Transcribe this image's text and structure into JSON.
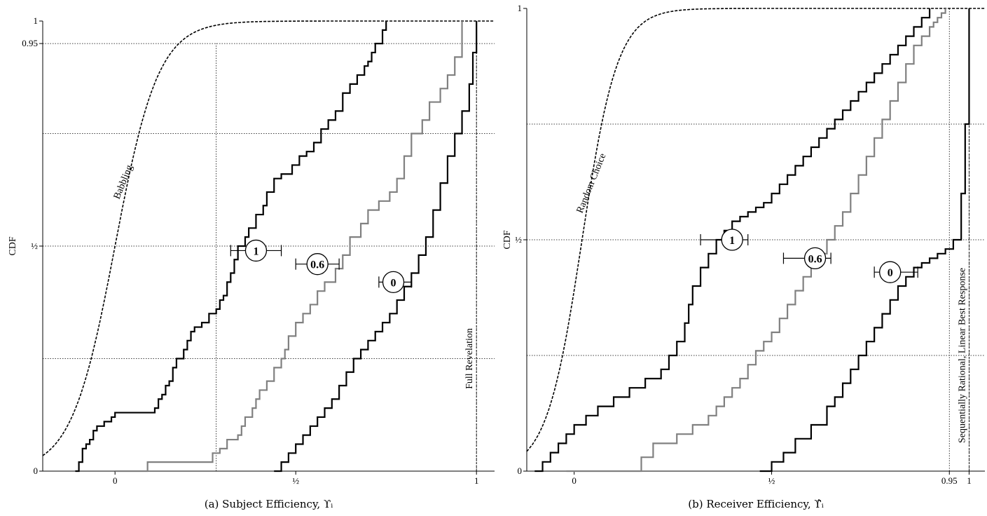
{
  "chart_data": [
    {
      "type": "line",
      "caption": "(a) Subject Efficiency, ϒᵢ",
      "ylabel": "CDF",
      "xlim": [
        -0.2,
        1.05
      ],
      "ylim": [
        0,
        1
      ],
      "x_ticks": [
        {
          "v": 0,
          "t": "0"
        },
        {
          "v": 0.5,
          "t": "½"
        },
        {
          "v": 1,
          "t": "1"
        }
      ],
      "y_ticks": [
        {
          "v": 0,
          "t": "0"
        },
        {
          "v": 0.5,
          "t": "½"
        },
        {
          "v": 0.95,
          "t": "0.95"
        },
        {
          "v": 1,
          "t": "1"
        }
      ],
      "h_grid": [
        0.25,
        0.5,
        0.75,
        0.95
      ],
      "v_ref": [
        {
          "x": 0.28,
          "y_to": 0.95
        },
        {
          "x": 1.0,
          "y_to": 1
        }
      ],
      "reference_curves": [
        {
          "label": "Babbling",
          "center": 0.0,
          "scale": 0.06,
          "x_from": -0.2,
          "x_to": 1.0,
          "label_x": 0.03,
          "label_y": 0.64
        },
        {
          "label": "Full Revelation",
          "vertical_x": 1.0,
          "label_y": 0.25
        }
      ],
      "series": [
        {
          "name": "1",
          "color": "#000000",
          "x": [
            -0.11,
            -0.1,
            -0.09,
            -0.08,
            -0.07,
            -0.06,
            -0.05,
            -0.03,
            -0.01,
            0,
            0.03,
            0.05,
            0.09,
            0.11,
            0.12,
            0.13,
            0.14,
            0.15,
            0.16,
            0.17,
            0.19,
            0.2,
            0.21,
            0.22,
            0.24,
            0.26,
            0.28,
            0.29,
            0.3,
            0.31,
            0.32,
            0.33,
            0.34,
            0.34,
            0.35,
            0.36,
            0.37,
            0.39,
            0.41,
            0.42,
            0.44,
            0.46,
            0.49,
            0.51,
            0.53,
            0.55,
            0.57,
            0.59,
            0.61,
            0.63,
            0.65,
            0.67,
            0.69,
            0.7,
            0.71,
            0.72,
            0.74,
            0.75
          ],
          "y": [
            0,
            0.02,
            0.05,
            0.06,
            0.07,
            0.09,
            0.1,
            0.11,
            0.12,
            0.13,
            0.13,
            0.13,
            0.13,
            0.14,
            0.16,
            0.17,
            0.19,
            0.2,
            0.23,
            0.25,
            0.27,
            0.29,
            0.31,
            0.32,
            0.33,
            0.35,
            0.36,
            0.38,
            0.39,
            0.42,
            0.44,
            0.47,
            0.49,
            0.5,
            0.5,
            0.52,
            0.54,
            0.57,
            0.59,
            0.62,
            0.65,
            0.66,
            0.68,
            0.7,
            0.71,
            0.73,
            0.76,
            0.78,
            0.8,
            0.84,
            0.86,
            0.88,
            0.9,
            0.91,
            0.93,
            0.95,
            0.98,
            1.0
          ]
        },
        {
          "name": "0.6",
          "color": "#808080",
          "x": [
            0,
            0.09,
            0.27,
            0.29,
            0.31,
            0.34,
            0.35,
            0.36,
            0.38,
            0.39,
            0.4,
            0.42,
            0.44,
            0.46,
            0.47,
            0.48,
            0.5,
            0.52,
            0.54,
            0.56,
            0.58,
            0.61,
            0.63,
            0.65,
            0.68,
            0.7,
            0.73,
            0.76,
            0.78,
            0.8,
            0.82,
            0.85,
            0.87,
            0.9,
            0.92,
            0.94,
            0.96
          ],
          "y": [
            0,
            0.02,
            0.04,
            0.05,
            0.07,
            0.08,
            0.1,
            0.12,
            0.14,
            0.16,
            0.18,
            0.2,
            0.23,
            0.25,
            0.27,
            0.3,
            0.33,
            0.35,
            0.37,
            0.4,
            0.42,
            0.45,
            0.48,
            0.52,
            0.55,
            0.58,
            0.6,
            0.62,
            0.65,
            0.7,
            0.75,
            0.78,
            0.82,
            0.85,
            0.88,
            0.92,
            1.0
          ]
        },
        {
          "name": "0",
          "color": "#000000",
          "x": [
            0.44,
            0.46,
            0.48,
            0.5,
            0.52,
            0.54,
            0.56,
            0.58,
            0.6,
            0.62,
            0.64,
            0.66,
            0.68,
            0.7,
            0.72,
            0.74,
            0.76,
            0.78,
            0.8,
            0.82,
            0.84,
            0.86,
            0.88,
            0.9,
            0.92,
            0.94,
            0.96,
            0.98,
            0.99,
            1.0
          ],
          "y": [
            0,
            0.02,
            0.04,
            0.06,
            0.08,
            0.1,
            0.12,
            0.14,
            0.16,
            0.19,
            0.22,
            0.25,
            0.27,
            0.29,
            0.31,
            0.33,
            0.35,
            0.38,
            0.41,
            0.44,
            0.48,
            0.52,
            0.58,
            0.64,
            0.7,
            0.75,
            0.8,
            0.86,
            0.93,
            1.0
          ]
        }
      ],
      "error_bars": [
        {
          "label": "1",
          "x": 0.39,
          "lo": 0.32,
          "hi": 0.46,
          "y": 0.49
        },
        {
          "label": "0.6",
          "x": 0.56,
          "lo": 0.5,
          "hi": 0.62,
          "y": 0.46
        },
        {
          "label": "0",
          "x": 0.77,
          "lo": 0.73,
          "hi": 0.82,
          "y": 0.42
        }
      ]
    },
    {
      "type": "line",
      "caption": "(b) Receiver Efficiency, ϒ̂ᵢ",
      "ylabel": "CDF",
      "xlim": [
        -0.12,
        1.04
      ],
      "ylim": [
        0,
        1
      ],
      "x_ticks": [
        {
          "v": 0,
          "t": "0"
        },
        {
          "v": 0.5,
          "t": "½"
        },
        {
          "v": 0.95,
          "t": "0.95"
        },
        {
          "v": 1,
          "t": "1"
        }
      ],
      "y_ticks": [
        {
          "v": 0,
          "t": "0"
        },
        {
          "v": 0.5,
          "t": "½"
        },
        {
          "v": 1,
          "t": "1"
        }
      ],
      "h_grid": [
        0.25,
        0.5,
        0.75
      ],
      "v_ref": [
        {
          "x": 0.95,
          "y_to": 1
        },
        {
          "x": 1.0,
          "y_to": 1
        }
      ],
      "reference_curves": [
        {
          "label": "Random Choice",
          "center": 0.02,
          "scale": 0.045,
          "x_from": -0.12,
          "x_to": 1.0,
          "label_x": 0.05,
          "label_y": 0.62
        },
        {
          "label": "Sequentially Rational, Linear Best Response",
          "vertical_x": 1.0,
          "label_y": 0.25
        }
      ],
      "series": [
        {
          "name": "1",
          "color": "#000000",
          "x": [
            -0.1,
            -0.08,
            -0.06,
            -0.04,
            -0.02,
            0,
            0.03,
            0.06,
            0.1,
            0.14,
            0.18,
            0.22,
            0.24,
            0.26,
            0.28,
            0.29,
            0.3,
            0.32,
            0.34,
            0.36,
            0.38,
            0.4,
            0.42,
            0.44,
            0.46,
            0.48,
            0.5,
            0.52,
            0.54,
            0.56,
            0.58,
            0.6,
            0.62,
            0.64,
            0.66,
            0.68,
            0.7,
            0.72,
            0.74,
            0.76,
            0.78,
            0.8,
            0.82,
            0.84,
            0.86,
            0.88,
            0.9
          ],
          "y": [
            0,
            0.02,
            0.04,
            0.06,
            0.08,
            0.1,
            0.12,
            0.14,
            0.16,
            0.18,
            0.2,
            0.22,
            0.25,
            0.28,
            0.32,
            0.36,
            0.4,
            0.44,
            0.47,
            0.5,
            0.52,
            0.54,
            0.55,
            0.56,
            0.57,
            0.58,
            0.6,
            0.62,
            0.64,
            0.66,
            0.68,
            0.7,
            0.72,
            0.74,
            0.76,
            0.78,
            0.8,
            0.82,
            0.84,
            0.86,
            0.88,
            0.9,
            0.92,
            0.94,
            0.96,
            0.98,
            1.0
          ]
        },
        {
          "name": "0.6",
          "color": "#808080",
          "x": [
            -0.02,
            0.17,
            0.2,
            0.26,
            0.3,
            0.34,
            0.36,
            0.38,
            0.4,
            0.42,
            0.44,
            0.46,
            0.48,
            0.5,
            0.52,
            0.54,
            0.56,
            0.58,
            0.6,
            0.62,
            0.64,
            0.66,
            0.68,
            0.7,
            0.72,
            0.74,
            0.76,
            0.78,
            0.8,
            0.82,
            0.84,
            0.86,
            0.88,
            0.9,
            0.91,
            0.92,
            0.93,
            0.94
          ],
          "y": [
            0,
            0.03,
            0.06,
            0.08,
            0.1,
            0.12,
            0.14,
            0.16,
            0.18,
            0.2,
            0.23,
            0.26,
            0.28,
            0.3,
            0.33,
            0.36,
            0.39,
            0.42,
            0.44,
            0.47,
            0.5,
            0.53,
            0.56,
            0.6,
            0.64,
            0.68,
            0.72,
            0.76,
            0.8,
            0.84,
            0.88,
            0.92,
            0.94,
            0.96,
            0.97,
            0.98,
            0.99,
            1.0
          ]
        },
        {
          "name": "0",
          "color": "#000000",
          "x": [
            0.47,
            0.5,
            0.53,
            0.56,
            0.6,
            0.64,
            0.66,
            0.68,
            0.7,
            0.72,
            0.74,
            0.76,
            0.78,
            0.8,
            0.82,
            0.84,
            0.86,
            0.88,
            0.9,
            0.92,
            0.94,
            0.96,
            0.98,
            0.99,
            1.0
          ],
          "y": [
            0,
            0.02,
            0.04,
            0.07,
            0.1,
            0.14,
            0.16,
            0.19,
            0.22,
            0.25,
            0.28,
            0.31,
            0.34,
            0.37,
            0.4,
            0.42,
            0.44,
            0.45,
            0.46,
            0.47,
            0.48,
            0.5,
            0.6,
            0.75,
            1.0
          ]
        }
      ],
      "error_bars": [
        {
          "label": "1",
          "x": 0.4,
          "lo": 0.32,
          "hi": 0.44,
          "y": 0.5
        },
        {
          "label": "0.6",
          "x": 0.61,
          "lo": 0.53,
          "hi": 0.65,
          "y": 0.46
        },
        {
          "label": "0",
          "x": 0.8,
          "lo": 0.76,
          "hi": 0.87,
          "y": 0.43
        }
      ]
    }
  ]
}
